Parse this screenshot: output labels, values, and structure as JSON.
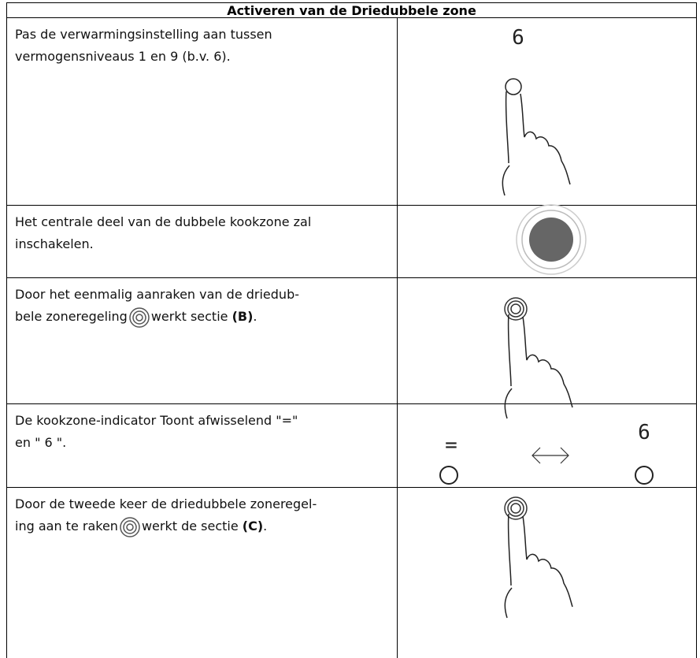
{
  "table": {
    "title": "Activeren van de Driedubbele zone",
    "rows": [
      {
        "lines": [
          "Pas de verwarmingsinstelling aan tussen",
          "vermogensniveaus 1 en 9 (b.v. 6)."
        ],
        "figure": {
          "display": "6"
        }
      },
      {
        "lines": [
          "Het centrale deel van de dubbele kookzone zal",
          "inschakelen."
        ]
      },
      {
        "lines": [
          "Door het eenmalig aanraken van de driedub-",
          "bele zoneregeling"
        ],
        "after": "werkt sectie",
        "bold": "(B)",
        "end": "."
      },
      {
        "lines": [
          "De kookzone-indicator Toont afwisselend \"=\"",
          "en \" 6 \"."
        ],
        "figure": {
          "left": "=",
          "right": "6"
        }
      },
      {
        "lines": [
          "Door de tweede keer de driedubbele zoneregel-",
          "ing aan te raken"
        ],
        "after": "werkt de sectie",
        "bold": "(C)",
        "end": "."
      }
    ]
  }
}
